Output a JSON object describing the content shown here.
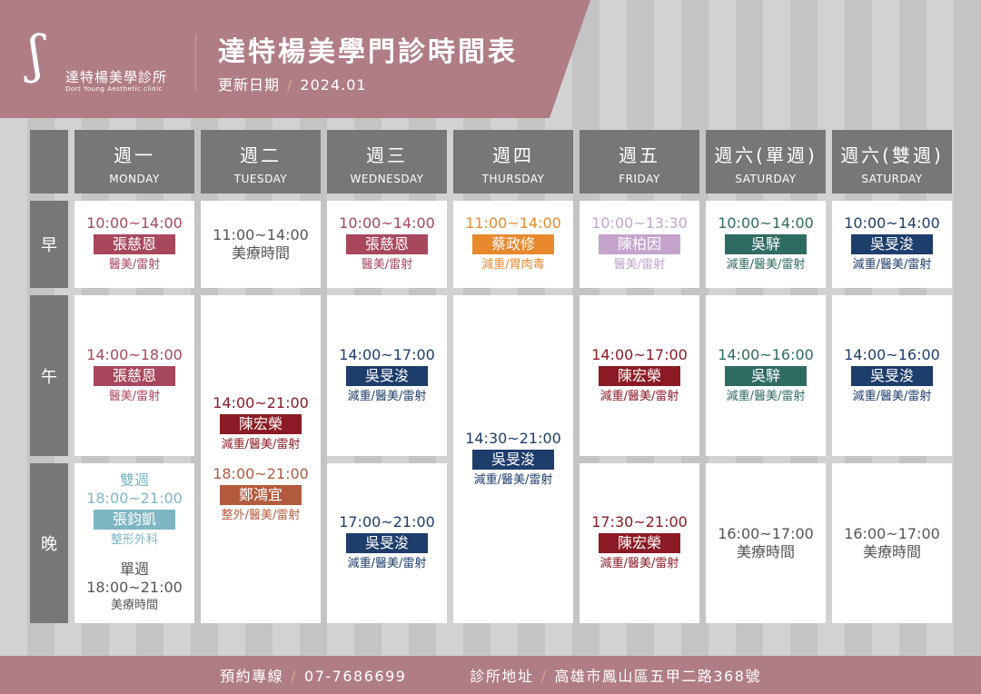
{
  "header": {
    "logo_zh": "達特楊美學診所",
    "logo_en": "Dort Young Aesthetic clinic",
    "title": "達特楊美學門診時間表",
    "update_label": "更新日期",
    "update_value": "2024.01"
  },
  "days": [
    {
      "zh": "週一",
      "en": "MONDAY"
    },
    {
      "zh": "週二",
      "en": "TUESDAY"
    },
    {
      "zh": "週三",
      "en": "WEDNESDAY"
    },
    {
      "zh": "週四",
      "en": "THURSDAY"
    },
    {
      "zh": "週五",
      "en": "FRIDAY"
    },
    {
      "zh": "週六(單週)",
      "en": "SATURDAY"
    },
    {
      "zh": "週六(雙週)",
      "en": "SATURDAY"
    }
  ],
  "periods": [
    "早",
    "午",
    "晚"
  ],
  "colors": {
    "pink": "#a8475c",
    "orange": "#e8892e",
    "lavender": "#c3a5cc",
    "green": "#2f6b62",
    "navy": "#1d3d6b",
    "darkred": "#8b1a25",
    "brown": "#b35a3e",
    "teal": "#7fb6c4",
    "gray": "#555555",
    "banner": "#b07d85"
  },
  "cells": [
    {
      "col": 0,
      "row": 0,
      "span": 1,
      "entries": [
        {
          "time": "10:00~14:00",
          "doctor": "張慈恩",
          "dept": "醫美/雷射",
          "color": "#a8475c"
        }
      ]
    },
    {
      "col": 0,
      "row": 1,
      "span": 1,
      "entries": [
        {
          "time": "14:00~18:00",
          "doctor": "張慈恩",
          "dept": "醫美/雷射",
          "color": "#a8475c"
        }
      ]
    },
    {
      "col": 0,
      "row": 2,
      "span": 1,
      "entries": [
        {
          "note": "雙週",
          "time": "18:00~21:00",
          "doctor": "張鈞凱",
          "dept": "整形外科",
          "color": "#7fb6c4"
        },
        {
          "note": "單週",
          "time": "18:00~21:00",
          "dept": "美療時間",
          "color": "#555555"
        }
      ]
    },
    {
      "col": 1,
      "row": 0,
      "span": 1,
      "entries": [
        {
          "time": "11:00~14:00",
          "dept": "美療時間",
          "color": "#555555",
          "big": true
        }
      ]
    },
    {
      "col": 1,
      "row": 1,
      "span": 2,
      "entries": [
        {
          "time": "14:00~21:00",
          "doctor": "陳宏榮",
          "dept": "減重/醫美/雷射",
          "color": "#8b1a25"
        },
        {
          "time": "18:00~21:00",
          "doctor": "鄭鴻宜",
          "dept": "整外/醫美/雷射",
          "color": "#b35a3e"
        }
      ]
    },
    {
      "col": 2,
      "row": 0,
      "span": 1,
      "entries": [
        {
          "time": "10:00~14:00",
          "doctor": "張慈恩",
          "dept": "醫美/雷射",
          "color": "#a8475c"
        }
      ]
    },
    {
      "col": 2,
      "row": 1,
      "span": 1,
      "entries": [
        {
          "time": "14:00~17:00",
          "doctor": "吳旻浚",
          "dept": "減重/醫美/雷射",
          "color": "#1d3d6b"
        }
      ]
    },
    {
      "col": 2,
      "row": 2,
      "span": 1,
      "entries": [
        {
          "time": "17:00~21:00",
          "doctor": "吳旻浚",
          "dept": "減重/醫美/雷射",
          "color": "#1d3d6b"
        }
      ]
    },
    {
      "col": 3,
      "row": 0,
      "span": 1,
      "entries": [
        {
          "time": "11:00~14:00",
          "doctor": "蔡政修",
          "dept": "減重/胃肉毒",
          "color": "#e8892e"
        }
      ]
    },
    {
      "col": 3,
      "row": 1,
      "span": 2,
      "entries": [
        {
          "time": "14:30~21:00",
          "doctor": "吳旻浚",
          "dept": "減重/醫美/雷射",
          "color": "#1d3d6b"
        }
      ]
    },
    {
      "col": 4,
      "row": 0,
      "span": 1,
      "entries": [
        {
          "time": "10:00~13:30",
          "doctor": "陳柏因",
          "dept": "醫美/雷射",
          "color": "#c3a5cc"
        }
      ]
    },
    {
      "col": 4,
      "row": 1,
      "span": 1,
      "entries": [
        {
          "time": "14:00~17:00",
          "doctor": "陳宏榮",
          "dept": "減重/醫美/雷射",
          "color": "#8b1a25"
        }
      ]
    },
    {
      "col": 4,
      "row": 2,
      "span": 1,
      "entries": [
        {
          "time": "17:30~21:00",
          "doctor": "陳宏榮",
          "dept": "減重/醫美/雷射",
          "color": "#8b1a25"
        }
      ]
    },
    {
      "col": 5,
      "row": 0,
      "span": 1,
      "entries": [
        {
          "time": "10:00~14:00",
          "doctor": "吳騂",
          "dept": "減重/醫美/雷射",
          "color": "#2f6b62"
        }
      ]
    },
    {
      "col": 5,
      "row": 1,
      "span": 1,
      "entries": [
        {
          "time": "14:00~16:00",
          "doctor": "吳騂",
          "dept": "減重/醫美/雷射",
          "color": "#2f6b62"
        }
      ]
    },
    {
      "col": 5,
      "row": 2,
      "span": 1,
      "entries": [
        {
          "time": "16:00~17:00",
          "dept": "美療時間",
          "color": "#555555",
          "big": true
        }
      ]
    },
    {
      "col": 6,
      "row": 0,
      "span": 1,
      "entries": [
        {
          "time": "10:00~14:00",
          "doctor": "吳旻浚",
          "dept": "減重/醫美/雷射",
          "color": "#1d3d6b"
        }
      ]
    },
    {
      "col": 6,
      "row": 1,
      "span": 1,
      "entries": [
        {
          "time": "14:00~16:00",
          "doctor": "吳旻浚",
          "dept": "減重/醫美/雷射",
          "color": "#1d3d6b"
        }
      ]
    },
    {
      "col": 6,
      "row": 2,
      "span": 1,
      "entries": [
        {
          "time": "16:00~17:00",
          "dept": "美療時間",
          "color": "#555555",
          "big": true
        }
      ]
    }
  ],
  "footer": {
    "phone_label": "預約專線",
    "phone": "07-7686699",
    "address_label": "診所地址",
    "address": "高雄市鳳山區五甲二路368號"
  }
}
